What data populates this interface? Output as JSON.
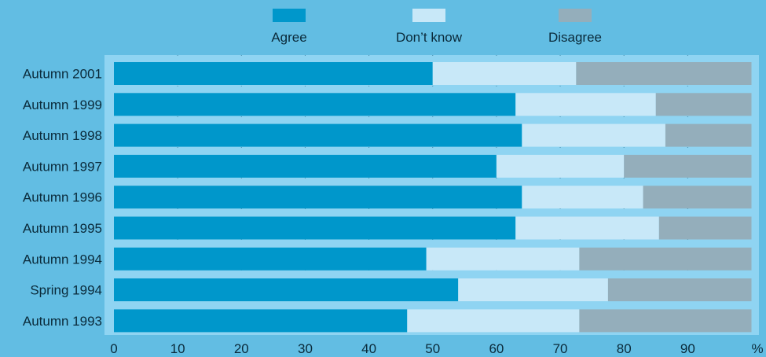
{
  "chart_data": {
    "type": "bar",
    "orientation": "horizontal",
    "stacked": true,
    "title": "",
    "xlabel": "",
    "ylabel": "",
    "unit_label": "%",
    "xlim": [
      0,
      100
    ],
    "xticks": [
      0,
      10,
      20,
      30,
      40,
      50,
      60,
      70,
      80,
      90
    ],
    "grid": true,
    "legend_position": "top",
    "categories": [
      "Autumn 2001",
      "Autumn 1999",
      "Autumn 1998",
      "Autumn 1997",
      "Autumn 1996",
      "Autumn 1995",
      "Autumn 1994",
      "Spring 1994",
      "Autumn 1993"
    ],
    "series": [
      {
        "name": "Agree",
        "color": "#0097cb",
        "values": [
          50,
          63,
          64,
          60,
          64,
          63,
          49,
          54,
          46
        ]
      },
      {
        "name": "Don’t know",
        "color": "#c8e8f8",
        "values": [
          22.5,
          22,
          22.5,
          20,
          19,
          22.5,
          24,
          23.5,
          27
        ]
      },
      {
        "name": "Disagree",
        "color": "#94aebb",
        "values": [
          27.5,
          15,
          13.5,
          20,
          17,
          14.5,
          27,
          22.5,
          27
        ]
      }
    ],
    "colors": {
      "page_background": "#62bde3",
      "plot_background": "#8fd4f2"
    }
  }
}
